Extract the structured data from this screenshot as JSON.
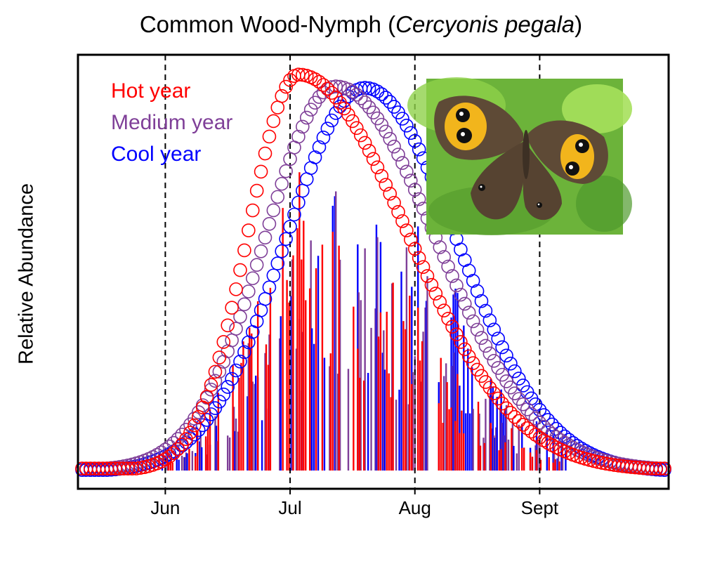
{
  "chart_data": {
    "type": "line",
    "title_prefix": "Common Wood-Nymph (",
    "title_species": "Cercyonis pegala",
    "title_suffix": ")",
    "xlabel": "",
    "ylabel": "Relative Abundance",
    "x_ticks": [
      {
        "label": "Jun",
        "day": 152
      },
      {
        "label": "Jul",
        "day": 182
      },
      {
        "label": "Aug",
        "day": 212
      },
      {
        "label": "Sept",
        "day": 242
      }
    ],
    "x_range_day": [
      131,
      273
    ],
    "y_range": [
      0,
      1.05
    ],
    "grid": false,
    "legend_position": "top-left",
    "series": [
      {
        "name": "Hot year",
        "color": "#ff0000",
        "peak_day": 184,
        "sigma_left": 12,
        "sigma_right": 26,
        "peak": 1.0
      },
      {
        "name": "Medium year",
        "color": "#7f3f98",
        "peak_day": 193,
        "sigma_left": 17,
        "sigma_right": 24,
        "peak": 0.97
      },
      {
        "name": "Cool year",
        "color": "#0000ff",
        "peak_day": 200,
        "sigma_left": 19,
        "sigma_right": 22,
        "peak": 0.97
      }
    ],
    "daily_counts_scale_max": 0.62,
    "inset_photo": "butterfly-photo"
  }
}
